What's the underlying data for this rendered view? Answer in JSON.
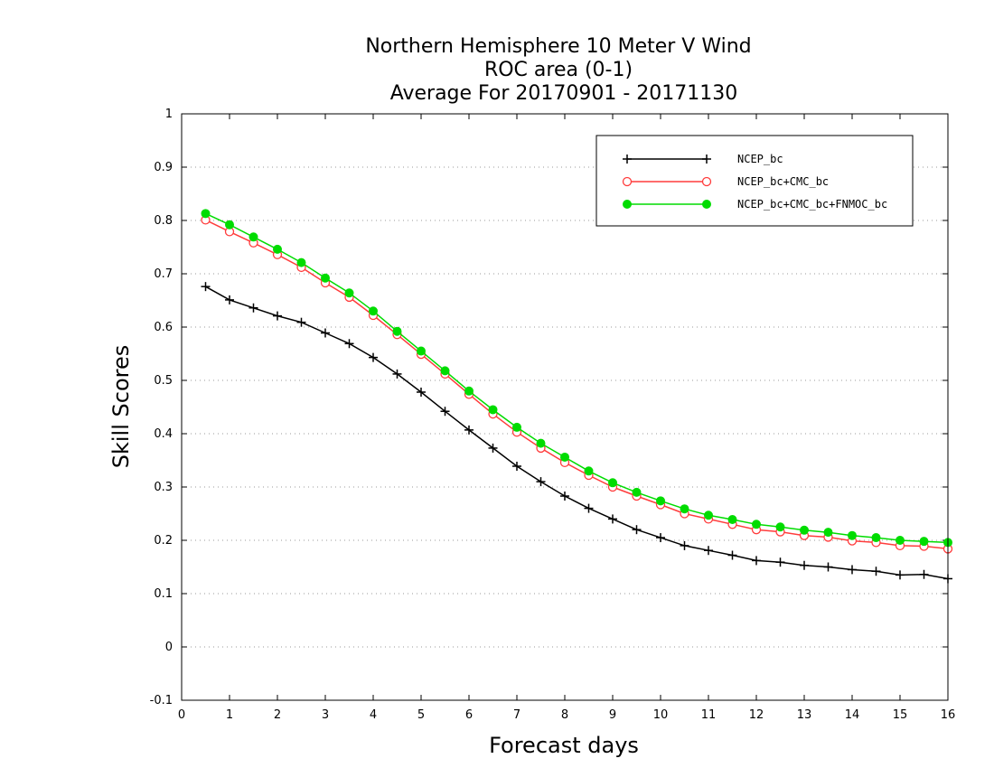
{
  "chart_data": {
    "type": "line",
    "title": [
      "Northern Hemisphere 10 Meter V Wind",
      "ROC area (0-1)",
      "Average For 20170901 - 20171130"
    ],
    "xlabel": "Forecast days",
    "ylabel": "Skill Scores",
    "xlim": [
      0,
      16
    ],
    "ylim": [
      -0.1,
      1
    ],
    "x_ticks": [
      "0",
      "1",
      "2",
      "3",
      "4",
      "5",
      "6",
      "7",
      "8",
      "9",
      "10",
      "11",
      "12",
      "13",
      "14",
      "15",
      "16"
    ],
    "y_ticks": [
      "-0.1",
      "0",
      "0.1",
      "0.2",
      "0.3",
      "0.4",
      "0.5",
      "0.6",
      "0.7",
      "0.8",
      "0.9",
      "1"
    ],
    "grid": "horizontal dotted",
    "legend_position": "top-right",
    "x": [
      0.5,
      1,
      1.5,
      2,
      2.5,
      3,
      3.5,
      4,
      4.5,
      5,
      5.5,
      6,
      6.5,
      7,
      7.5,
      8,
      8.5,
      9,
      9.5,
      10,
      10.5,
      11,
      11.5,
      12,
      12.5,
      13,
      13.5,
      14,
      14.5,
      15,
      15.5,
      16
    ],
    "series": [
      {
        "name": "NCEP_bc",
        "color": "#000000",
        "marker": "plus",
        "values": [
          0.676,
          0.651,
          0.636,
          0.621,
          0.609,
          0.589,
          0.569,
          0.543,
          0.512,
          0.478,
          0.442,
          0.407,
          0.373,
          0.339,
          0.31,
          0.283,
          0.26,
          0.24,
          0.22,
          0.205,
          0.19,
          0.181,
          0.172,
          0.162,
          0.159,
          0.153,
          0.15,
          0.145,
          0.142,
          0.135,
          0.136,
          0.128
        ]
      },
      {
        "name": "NCEP_bc+CMC_bc",
        "color": "#ff3c3c",
        "marker": "open-circle",
        "values": [
          0.801,
          0.779,
          0.758,
          0.736,
          0.712,
          0.683,
          0.656,
          0.622,
          0.586,
          0.549,
          0.512,
          0.474,
          0.437,
          0.403,
          0.373,
          0.346,
          0.322,
          0.3,
          0.283,
          0.267,
          0.25,
          0.24,
          0.23,
          0.22,
          0.216,
          0.209,
          0.206,
          0.199,
          0.196,
          0.19,
          0.189,
          0.184
        ]
      },
      {
        "name": "NCEP_bc+CMC_bc+FNMOC_bc",
        "color": "#00dc00",
        "marker": "filled-circle",
        "values": [
          0.813,
          0.792,
          0.769,
          0.746,
          0.721,
          0.692,
          0.664,
          0.63,
          0.592,
          0.555,
          0.518,
          0.48,
          0.445,
          0.412,
          0.382,
          0.356,
          0.33,
          0.308,
          0.29,
          0.274,
          0.259,
          0.247,
          0.239,
          0.23,
          0.225,
          0.219,
          0.215,
          0.209,
          0.205,
          0.2,
          0.198,
          0.196
        ]
      }
    ]
  }
}
